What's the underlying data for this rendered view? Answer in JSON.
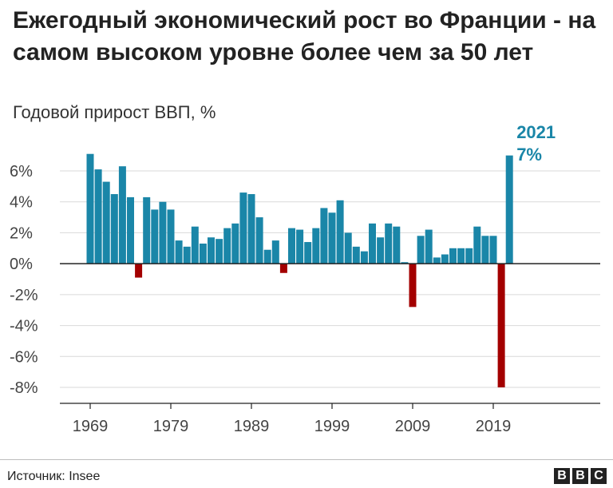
{
  "title": "Ежегодный экономический рост во Франции - на самом высоком уровне более чем за 50 лет",
  "subtitle": "Годовой прирост ВВП, %",
  "source": "Источник: Insee",
  "logo": [
    "B",
    "B",
    "C"
  ],
  "colors": {
    "positive": "#1a86a8",
    "negative": "#a30000",
    "highlight_text": "#1a86a8",
    "grid": "#d9d9d9",
    "axis": "#222222"
  },
  "chart_data": {
    "type": "bar",
    "title": "Ежегодный экономический рост во Франции - на самом высоком уровне более чем за 50 лет",
    "ylabel": "Годовой прирост ВВП, %",
    "xlabel": "",
    "ylim": [
      -8,
      7
    ],
    "xlim": [
      1968,
      2030
    ],
    "yticks": [
      6,
      4,
      2,
      0,
      -2,
      -4,
      -6,
      -8
    ],
    "ytick_labels": [
      "6%",
      "4%",
      "2%",
      "0%",
      "-2%",
      "-4%",
      "-6%",
      "-8%"
    ],
    "xticks": [
      1969,
      1979,
      1989,
      1999,
      2009,
      2019
    ],
    "xtick_labels": [
      "1969",
      "1979",
      "1989",
      "1999",
      "2009",
      "2019"
    ],
    "grid": true,
    "x": [
      1969,
      1970,
      1971,
      1972,
      1973,
      1974,
      1975,
      1976,
      1977,
      1978,
      1979,
      1980,
      1981,
      1982,
      1983,
      1984,
      1985,
      1986,
      1987,
      1988,
      1989,
      1990,
      1991,
      1992,
      1993,
      1994,
      1995,
      1996,
      1997,
      1998,
      1999,
      2000,
      2001,
      2002,
      2003,
      2004,
      2005,
      2006,
      2007,
      2008,
      2009,
      2010,
      2011,
      2012,
      2013,
      2014,
      2015,
      2016,
      2017,
      2018,
      2019,
      2020,
      2021
    ],
    "values": [
      7.1,
      6.1,
      5.3,
      4.5,
      6.3,
      4.3,
      -0.9,
      4.3,
      3.5,
      4.0,
      3.5,
      1.5,
      1.1,
      2.4,
      1.3,
      1.7,
      1.6,
      2.3,
      2.6,
      4.6,
      4.5,
      3.0,
      0.9,
      1.5,
      -0.6,
      2.3,
      2.2,
      1.4,
      2.3,
      3.6,
      3.3,
      4.1,
      2.0,
      1.1,
      0.8,
      2.6,
      1.7,
      2.6,
      2.4,
      0.1,
      -2.8,
      1.8,
      2.2,
      0.4,
      0.6,
      1.0,
      1.0,
      1.0,
      2.4,
      1.8,
      1.8,
      -8.0,
      7.0
    ],
    "annotations": [
      {
        "x": 2021,
        "year_label": "2021",
        "value_label": "7%"
      }
    ]
  }
}
